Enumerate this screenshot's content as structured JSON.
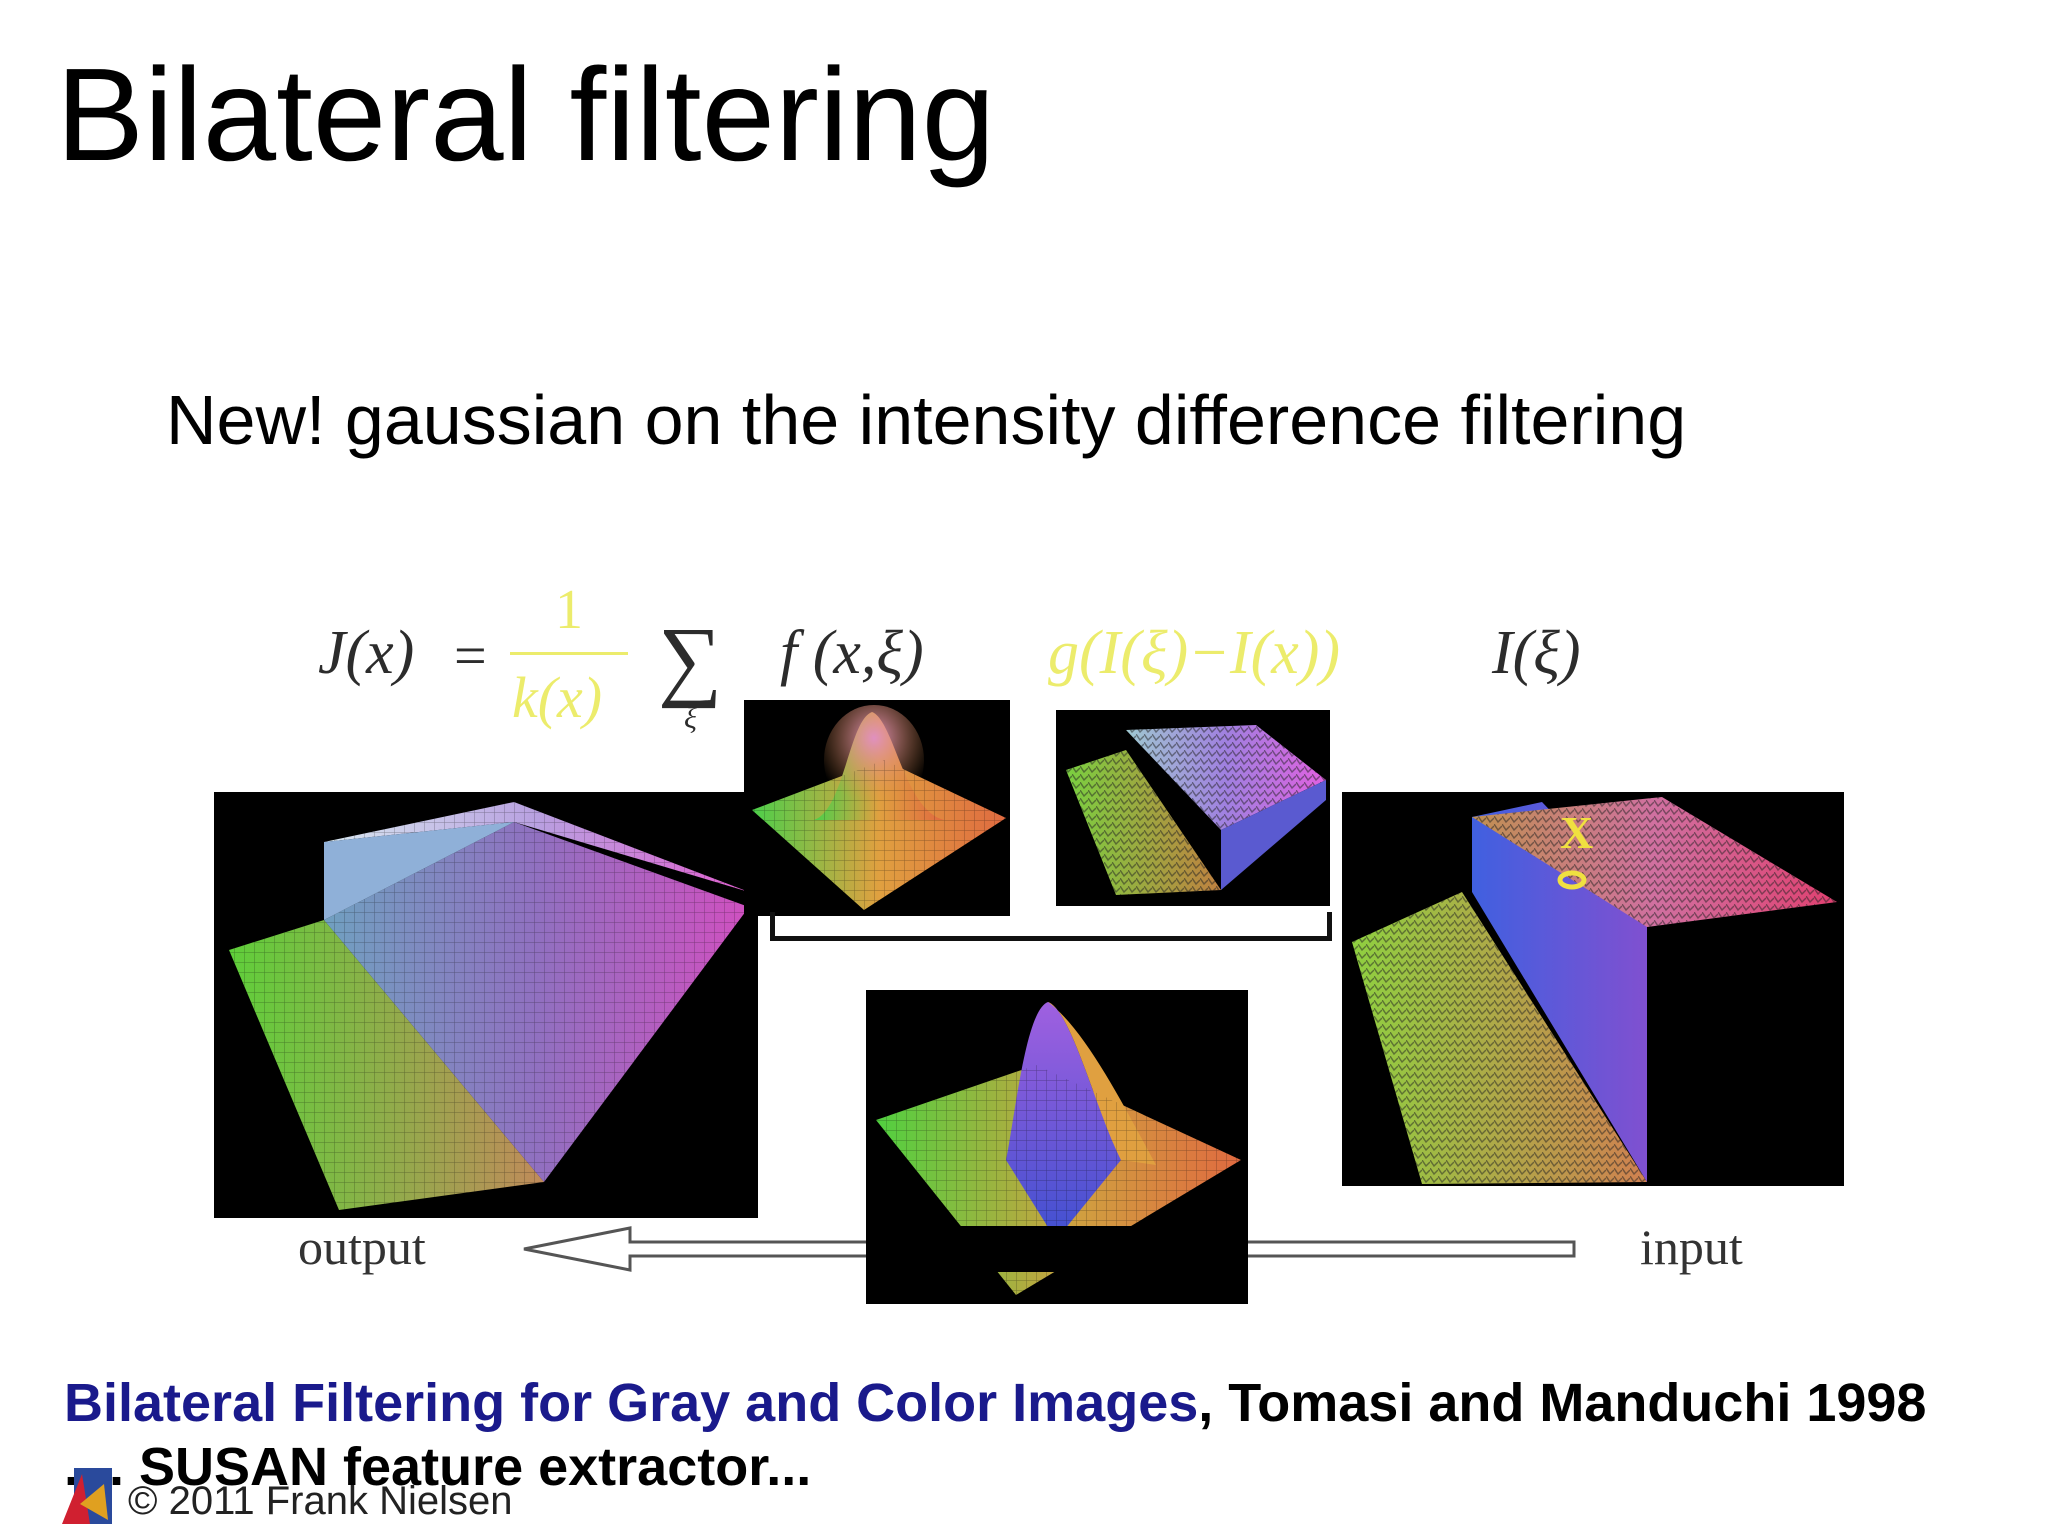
{
  "slide": {
    "title": "Bilateral filtering",
    "subtitle": "New! gaussian on the intensity difference filtering"
  },
  "formula": {
    "lhs": "J(x)",
    "equals": "=",
    "numerator": "1",
    "denominator": "k(x)",
    "sum_symbol": "∑",
    "sum_index": "ξ",
    "spatial_term": "f (x,ξ)",
    "range_term": "g(I(ξ)−I(x))",
    "input_term": "I(ξ)"
  },
  "diagram": {
    "output_label": "output",
    "input_label": "input",
    "marker_label": "X"
  },
  "footer": {
    "reference_title": "Bilateral Filtering for Gray and Color Images",
    "reference_rest": ", Tomasi and Manduchi 1998",
    "extra_line": ".... SUSAN feature extractor...",
    "copyright": "© 2011 Frank Nielsen"
  },
  "colors": {
    "link": "#1a1a8c",
    "formula_highlight": "#ecec6c",
    "panel_bg": "#000000"
  }
}
